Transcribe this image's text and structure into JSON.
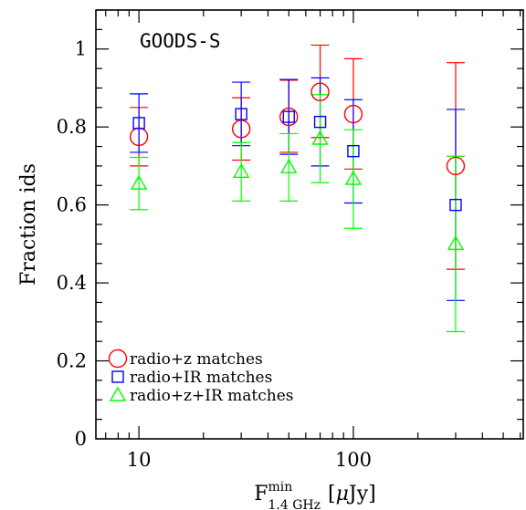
{
  "chart_data": {
    "type": "scatter",
    "title": "GOODS-S",
    "xlabel": {
      "main": "F",
      "sup": "min",
      "sub": "1.4 GHz",
      "unit_open": "[",
      "mu": "μ",
      "unit": "Jy",
      "unit_close": "]"
    },
    "ylabel": "Fraction ids",
    "x_scale": "log",
    "xlim": [
      6.3,
      620
    ],
    "ylim": [
      0,
      1.1
    ],
    "x_ticks": [
      10,
      100
    ],
    "x_tick_labels": [
      "10",
      "100"
    ],
    "y_ticks": [
      0,
      0.2,
      0.4,
      0.6,
      0.8,
      1
    ],
    "y_tick_labels": [
      "0",
      "0.2",
      "0.4",
      "0.6",
      "0.8",
      "1"
    ],
    "grid": false,
    "legend_placement": "bottom-left",
    "series": [
      {
        "name": "radio+z matches",
        "marker": "circle",
        "color": "#ff0000",
        "points": [
          {
            "x": 10,
            "y": 0.775,
            "lo": 0.7,
            "hi": 0.85
          },
          {
            "x": 30,
            "y": 0.795,
            "lo": 0.715,
            "hi": 0.875
          },
          {
            "x": 50,
            "y": 0.826,
            "lo": 0.735,
            "hi": 0.92
          },
          {
            "x": 70,
            "y": 0.89,
            "lo": 0.773,
            "hi": 1.01
          },
          {
            "x": 100,
            "y": 0.833,
            "lo": 0.692,
            "hi": 0.975
          },
          {
            "x": 300,
            "y": 0.7,
            "lo": 0.435,
            "hi": 0.965
          }
        ]
      },
      {
        "name": "radio+IR matches",
        "marker": "square",
        "color": "#0000ff",
        "points": [
          {
            "x": 10,
            "y": 0.81,
            "lo": 0.735,
            "hi": 0.885
          },
          {
            "x": 30,
            "y": 0.833,
            "lo": 0.752,
            "hi": 0.915
          },
          {
            "x": 50,
            "y": 0.826,
            "lo": 0.73,
            "hi": 0.922
          },
          {
            "x": 70,
            "y": 0.813,
            "lo": 0.7,
            "hi": 0.926
          },
          {
            "x": 100,
            "y": 0.738,
            "lo": 0.605,
            "hi": 0.87
          },
          {
            "x": 300,
            "y": 0.6,
            "lo": 0.355,
            "hi": 0.845
          }
        ]
      },
      {
        "name": "radio+z+IR matches",
        "marker": "triangle",
        "color": "#00ff00",
        "points": [
          {
            "x": 10,
            "y": 0.655,
            "lo": 0.588,
            "hi": 0.722
          },
          {
            "x": 30,
            "y": 0.685,
            "lo": 0.61,
            "hi": 0.76
          },
          {
            "x": 50,
            "y": 0.697,
            "lo": 0.61,
            "hi": 0.783
          },
          {
            "x": 70,
            "y": 0.77,
            "lo": 0.657,
            "hi": 0.883
          },
          {
            "x": 100,
            "y": 0.667,
            "lo": 0.54,
            "hi": 0.793
          },
          {
            "x": 300,
            "y": 0.5,
            "lo": 0.275,
            "hi": 0.725
          }
        ]
      }
    ]
  }
}
